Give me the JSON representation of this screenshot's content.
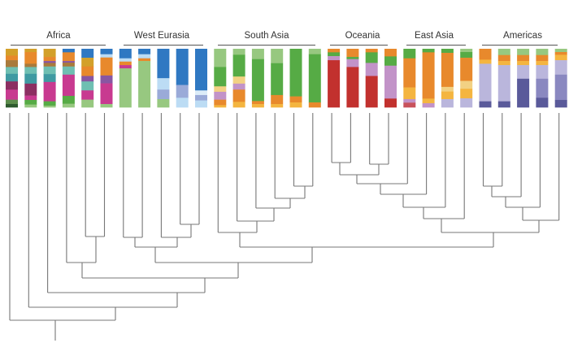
{
  "palette": {
    "gold": "#d3a02a",
    "orange": "#e8892c",
    "brown": "#a97a3c",
    "teal_light": "#6fbfb2",
    "teal": "#3f9aa2",
    "maroon": "#8c2f62",
    "magenta": "#c83a90",
    "dark_green": "#5c8c4c",
    "darkest_green": "#2e5a2e",
    "green": "#56ab45",
    "light_green": "#97c880",
    "purple": "#8856a2",
    "blue": "#2f78c2",
    "light_blue": "#bcdcf4",
    "pale_blue": "#dcecf8",
    "periwinkle": "#9aaad8",
    "yellow_orange": "#f4b540",
    "pale_yellow": "#f2d183",
    "lilac": "#c293c8",
    "red": "#c2312e",
    "rose": "#c8525c",
    "lavender": "#bab6dc",
    "navy": "#5a5a9a",
    "mid_purple": "#8a88c0",
    "tree_line": "#777777"
  },
  "groups": [
    {
      "label": "Africa",
      "bars": [
        [
          [
            "gold",
            25
          ],
          [
            "orange",
            17
          ],
          [
            "brown",
            25
          ],
          [
            "teal_light",
            25
          ],
          [
            "teal",
            28
          ],
          [
            "maroon",
            30
          ],
          [
            "magenta",
            37
          ],
          [
            "dark_green",
            16
          ],
          [
            "darkest_green",
            12
          ]
        ],
        [
          [
            "gold",
            12
          ],
          [
            "orange",
            43
          ],
          [
            "brown",
            12
          ],
          [
            "teal_light",
            25
          ],
          [
            "teal",
            36
          ],
          [
            "maroon",
            44
          ],
          [
            "magenta",
            16
          ],
          [
            "green",
            17
          ],
          [
            "light_green",
            10
          ]
        ],
        [
          [
            "gold",
            30
          ],
          [
            "orange",
            15
          ],
          [
            "purple",
            7
          ],
          [
            "brown",
            13
          ],
          [
            "teal_light",
            28
          ],
          [
            "teal",
            29
          ],
          [
            "magenta",
            71
          ],
          [
            "green",
            16
          ],
          [
            "light_green",
            6
          ]
        ],
        [
          [
            "blue",
            13
          ],
          [
            "orange",
            32
          ],
          [
            "purple",
            6
          ],
          [
            "brown",
            14
          ],
          [
            "teal_light",
            30
          ],
          [
            "magenta",
            78
          ],
          [
            "green",
            29
          ],
          [
            "light_green",
            13
          ]
        ],
        [
          [
            "blue",
            33
          ],
          [
            "gold",
            32
          ],
          [
            "orange",
            35
          ],
          [
            "purple",
            20
          ],
          [
            "teal_light",
            33
          ],
          [
            "magenta",
            34
          ],
          [
            "light_green",
            28
          ]
        ],
        [
          [
            "blue",
            20
          ],
          [
            "light_blue",
            12
          ],
          [
            "orange",
            66
          ],
          [
            "purple",
            29
          ],
          [
            "magenta",
            76
          ],
          [
            "light_green",
            12
          ]
        ]
      ]
    },
    {
      "label": "West Eurasia",
      "bars": [
        [
          [
            "blue",
            35
          ],
          [
            "light_blue",
            12
          ],
          [
            "orange",
            13
          ],
          [
            "magenta",
            12
          ],
          [
            "light_green",
            143
          ]
        ],
        [
          [
            "blue",
            20
          ],
          [
            "light_blue",
            15
          ],
          [
            "orange",
            10
          ],
          [
            "light_green",
            170
          ]
        ],
        [
          [
            "blue",
            108
          ],
          [
            "light_blue",
            42
          ],
          [
            "periwinkle",
            35
          ],
          [
            "light_green",
            30
          ]
        ],
        [
          [
            "blue",
            133
          ],
          [
            "periwinkle",
            47
          ],
          [
            "light_blue",
            35
          ]
        ],
        [
          [
            "blue",
            153
          ],
          [
            "pale_blue",
            17
          ],
          [
            "periwinkle",
            20
          ],
          [
            "light_blue",
            25
          ]
        ]
      ]
    },
    {
      "label": "South Asia",
      "bars": [
        [
          [
            "light_green",
            67
          ],
          [
            "green",
            71
          ],
          [
            "pale_yellow",
            20
          ],
          [
            "lilac",
            29
          ],
          [
            "orange",
            20
          ],
          [
            "yellow_orange",
            8
          ]
        ],
        [
          [
            "light_green",
            22
          ],
          [
            "green",
            80
          ],
          [
            "pale_yellow",
            26
          ],
          [
            "lilac",
            22
          ],
          [
            "orange",
            45
          ],
          [
            "yellow_orange",
            20
          ]
        ],
        [
          [
            "light_green",
            38
          ],
          [
            "green",
            154
          ],
          [
            "orange",
            11
          ],
          [
            "yellow_orange",
            12
          ]
        ],
        [
          [
            "light_green",
            53
          ],
          [
            "green",
            117
          ],
          [
            "orange",
            33
          ],
          [
            "yellow_orange",
            12
          ]
        ],
        [
          [
            "green",
            175
          ],
          [
            "orange",
            22
          ],
          [
            "yellow_orange",
            18
          ]
        ],
        [
          [
            "light_green",
            20
          ],
          [
            "green",
            177
          ],
          [
            "orange",
            18
          ]
        ]
      ]
    },
    {
      "label": "Oceania",
      "bars": [
        [
          [
            "orange",
            13
          ],
          [
            "green",
            14
          ],
          [
            "lilac",
            15
          ],
          [
            "red",
            173
          ]
        ],
        [
          [
            "orange",
            30
          ],
          [
            "green",
            8
          ],
          [
            "lilac",
            29
          ],
          [
            "red",
            148
          ]
        ],
        [
          [
            "orange",
            13
          ],
          [
            "green",
            39
          ],
          [
            "lilac",
            48
          ],
          [
            "red",
            115
          ]
        ],
        [
          [
            "orange",
            28
          ],
          [
            "green",
            34
          ],
          [
            "lilac",
            121
          ],
          [
            "red",
            32
          ]
        ]
      ]
    },
    {
      "label": "East Asia",
      "bars": [
        [
          [
            "green",
            35
          ],
          [
            "orange",
            107
          ],
          [
            "yellow_orange",
            43
          ],
          [
            "lilac",
            13
          ],
          [
            "rose",
            17
          ]
        ],
        [
          [
            "green",
            13
          ],
          [
            "orange",
            170
          ],
          [
            "yellow_orange",
            17
          ],
          [
            "lilac",
            15
          ]
        ],
        [
          [
            "green",
            15
          ],
          [
            "orange",
            125
          ],
          [
            "pale_yellow",
            17
          ],
          [
            "yellow_orange",
            28
          ],
          [
            "lavender",
            30
          ]
        ],
        [
          [
            "light_green",
            12
          ],
          [
            "green",
            21
          ],
          [
            "orange",
            85
          ],
          [
            "pale_yellow",
            29
          ],
          [
            "yellow_orange",
            35
          ],
          [
            "lavender",
            33
          ]
        ]
      ]
    },
    {
      "label": "Americas",
      "bars": [
        [
          [
            "orange",
            40
          ],
          [
            "yellow_orange",
            15
          ],
          [
            "lavender",
            138
          ],
          [
            "navy",
            22
          ]
        ],
        [
          [
            "light_green",
            23
          ],
          [
            "orange",
            22
          ],
          [
            "yellow_orange",
            15
          ],
          [
            "lavender",
            133
          ],
          [
            "navy",
            22
          ]
        ],
        [
          [
            "light_green",
            23
          ],
          [
            "orange",
            22
          ],
          [
            "yellow_orange",
            15
          ],
          [
            "lavender",
            50
          ],
          [
            "navy",
            105
          ]
        ],
        [
          [
            "light_green",
            23
          ],
          [
            "orange",
            22
          ],
          [
            "yellow_orange",
            15
          ],
          [
            "lavender",
            50
          ],
          [
            "mid_purple",
            70
          ],
          [
            "navy",
            35
          ]
        ],
        [
          [
            "light_green",
            12
          ],
          [
            "orange",
            10
          ],
          [
            "yellow_orange",
            20
          ],
          [
            "lavender",
            53
          ],
          [
            "mid_purple",
            93
          ],
          [
            "navy",
            27
          ]
        ]
      ]
    }
  ]
}
